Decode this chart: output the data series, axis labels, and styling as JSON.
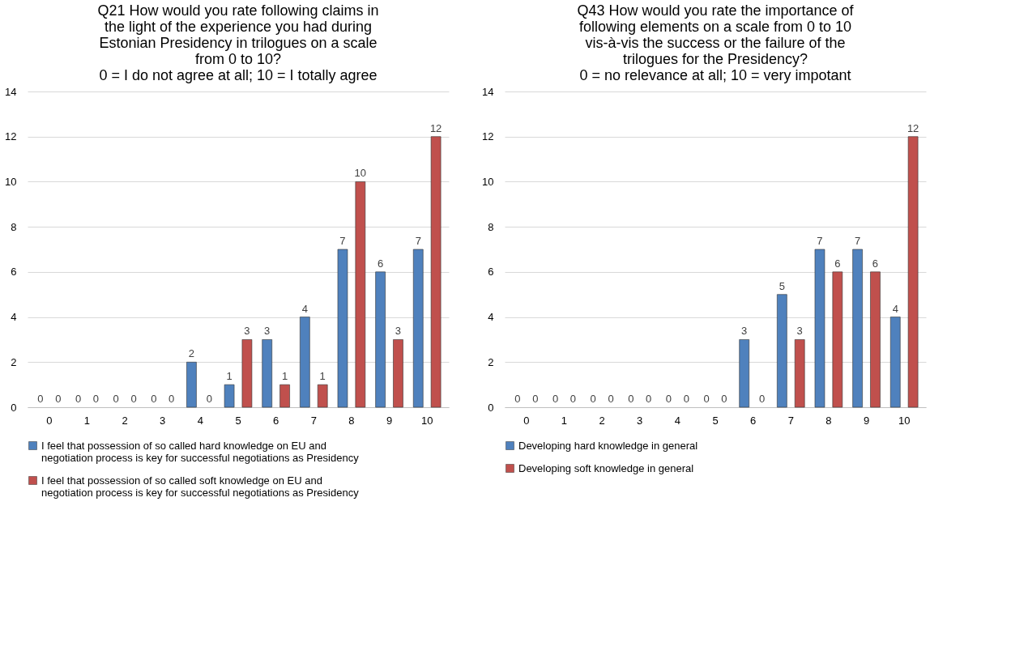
{
  "chart_data": [
    {
      "type": "bar",
      "title": "Q21 How would you rate following claims in\nthe light of the experience you had during\nEstonian Presidency in trilogues on a scale\nfrom 0 to 10?\n0 = I do not agree at all; 10 = I totally agree",
      "categories": [
        "0",
        "1",
        "2",
        "3",
        "4",
        "5",
        "6",
        "7",
        "8",
        "9",
        "10"
      ],
      "series": [
        {
          "name": "I feel that possession of so called hard knowledge on EU and negotiation process is key for successful negotiations as Presidency",
          "color": "#4f81bd",
          "values": [
            0,
            0,
            0,
            0,
            2,
            1,
            3,
            4,
            7,
            6,
            7
          ]
        },
        {
          "name": "I feel that possession of so called soft knowledge on EU and negotiation process is key for successful negotiations as Presidency",
          "color": "#c0504d",
          "values": [
            0,
            0,
            0,
            0,
            0,
            3,
            1,
            1,
            10,
            3,
            12
          ]
        }
      ],
      "ylim": [
        0,
        14
      ],
      "yticks": [
        0,
        2,
        4,
        6,
        8,
        10,
        12,
        14
      ],
      "grid": "y",
      "legend": "bottom",
      "data_labels": true
    },
    {
      "type": "bar",
      "title": "Q43 How would you rate the importance of\nfollowing elements on a scale from 0 to 10\nvis-à-vis the success or the failure of the\ntrilogues for the Presidency?\n0 = no relevance at all; 10 = very impotant",
      "categories": [
        "0",
        "1",
        "2",
        "3",
        "4",
        "5",
        "6",
        "7",
        "8",
        "9",
        "10"
      ],
      "series": [
        {
          "name": "Developing hard knowledge in general",
          "color": "#4f81bd",
          "values": [
            0,
            0,
            0,
            0,
            0,
            0,
            3,
            5,
            7,
            7,
            4
          ]
        },
        {
          "name": "Developing soft knowledge in general",
          "color": "#c0504d",
          "values": [
            0,
            0,
            0,
            0,
            0,
            0,
            0,
            3,
            6,
            6,
            12
          ]
        }
      ],
      "ylim": [
        0,
        14
      ],
      "yticks": [
        0,
        2,
        4,
        6,
        8,
        10,
        12,
        14
      ],
      "grid": "y",
      "legend": "bottom",
      "data_labels": true
    }
  ]
}
